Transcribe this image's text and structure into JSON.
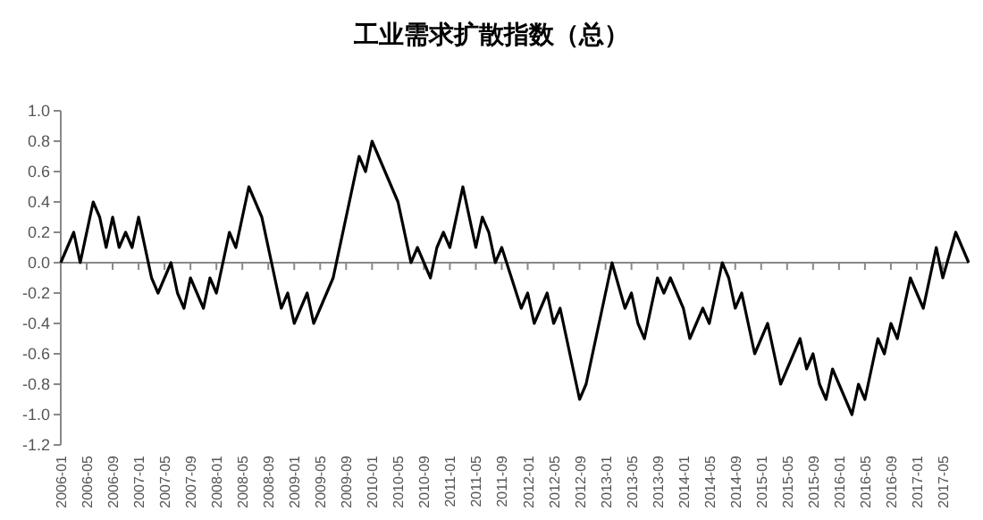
{
  "chart_data": {
    "type": "line",
    "title": "工业需求扩散指数（总）",
    "x": [
      "2006-01",
      "2006-03",
      "2006-04",
      "2006-06",
      "2006-07",
      "2006-08",
      "2006-09",
      "2006-10",
      "2006-11",
      "2006-12",
      "2007-01",
      "2007-03",
      "2007-04",
      "2007-06",
      "2007-07",
      "2007-08",
      "2007-09",
      "2007-11",
      "2007-12",
      "2008-01",
      "2008-03",
      "2008-04",
      "2008-06",
      "2008-08",
      "2008-11",
      "2008-12",
      "2009-01",
      "2009-03",
      "2009-04",
      "2009-07",
      "2009-11",
      "2009-12",
      "2010-01",
      "2010-05",
      "2010-07",
      "2010-08",
      "2010-10",
      "2010-11",
      "2010-12",
      "2011-01",
      "2011-03",
      "2011-05",
      "2011-06",
      "2011-07",
      "2011-08",
      "2011-09",
      "2011-12",
      "2012-01",
      "2012-02",
      "2012-04",
      "2012-05",
      "2012-06",
      "2012-09",
      "2012-10",
      "2013-02",
      "2013-04",
      "2013-05",
      "2013-06",
      "2013-07",
      "2013-09",
      "2013-10",
      "2013-11",
      "2014-01",
      "2014-02",
      "2014-04",
      "2014-05",
      "2014-07",
      "2014-08",
      "2014-09",
      "2014-10",
      "2014-12",
      "2015-02",
      "2015-04",
      "2015-07",
      "2015-08",
      "2015-09",
      "2015-10",
      "2015-11",
      "2015-12",
      "2016-03",
      "2016-04",
      "2016-05",
      "2016-07",
      "2016-08",
      "2016-09",
      "2016-10",
      "2016-12",
      "2017-02",
      "2017-04",
      "2017-05",
      "2017-07",
      "2017-09"
    ],
    "series": [
      {
        "color": "#000000",
        "values": [
          0,
          0.2,
          0,
          0.4,
          0.3,
          0.1,
          0.3,
          0.1,
          0.2,
          0.1,
          0.3,
          -0.1,
          -0.2,
          0,
          -0.2,
          -0.3,
          -0.1,
          -0.3,
          -0.1,
          -0.2,
          0.2,
          0.1,
          0.5,
          0.3,
          -0.3,
          -0.2,
          -0.4,
          -0.2,
          -0.4,
          -0.1,
          0.7,
          0.6,
          0.8,
          0.4,
          0,
          0.1,
          -0.1,
          0.1,
          0.2,
          0.1,
          0.5,
          0.1,
          0.3,
          0.2,
          0,
          0.1,
          -0.3,
          -0.2,
          -0.4,
          -0.2,
          -0.4,
          -0.3,
          -0.9,
          -0.8,
          0,
          -0.3,
          -0.2,
          -0.4,
          -0.5,
          -0.1,
          -0.2,
          -0.1,
          -0.3,
          -0.5,
          -0.3,
          -0.4,
          0,
          -0.1,
          -0.3,
          -0.2,
          -0.6,
          -0.4,
          -0.8,
          -0.5,
          -0.7,
          -0.6,
          -0.8,
          -0.9,
          -0.7,
          -1.0,
          -0.8,
          -0.9,
          -0.5,
          -0.6,
          -0.4,
          -0.5,
          -0.1,
          -0.3,
          0.1,
          -0.1,
          0.2,
          0
        ]
      }
    ],
    "xlim": [
      "2006-01",
      "2017-09"
    ],
    "xticks": [
      "2006-01",
      "2006-05",
      "2006-09",
      "2007-01",
      "2007-05",
      "2007-09",
      "2008-01",
      "2008-05",
      "2008-09",
      "2009-01",
      "2009-05",
      "2009-09",
      "2010-01",
      "2010-05",
      "2010-09",
      "2011-01",
      "2011-05",
      "2011-09",
      "2012-01",
      "2012-05",
      "2012-09",
      "2013-01",
      "2013-05",
      "2013-09",
      "2014-01",
      "2014-05",
      "2014-09",
      "2015-01",
      "2015-05",
      "2015-09",
      "2016-01",
      "2016-05",
      "2016-09",
      "2017-01",
      "2017-05"
    ],
    "ylim": [
      -1.2,
      1.0
    ],
    "yticks": [
      {
        "value": 1.0,
        "label": "1.0"
      },
      {
        "value": 0.8,
        "label": "0.8"
      },
      {
        "value": 0.6,
        "label": "0.6"
      },
      {
        "value": 0.4,
        "label": "0.4"
      },
      {
        "value": 0.2,
        "label": "0.2"
      },
      {
        "value": 0,
        "label": "0.0"
      },
      {
        "value": -0.2,
        "label": "-0.2"
      },
      {
        "value": -0.4,
        "label": "-0.4"
      },
      {
        "value": -0.6,
        "label": "-0.6"
      },
      {
        "value": -0.8,
        "label": "-0.8"
      },
      {
        "value": -1.0,
        "label": "-1.0"
      },
      {
        "value": -1.2,
        "label": "-1.2"
      }
    ],
    "marker": "none",
    "line_style": "solid"
  }
}
